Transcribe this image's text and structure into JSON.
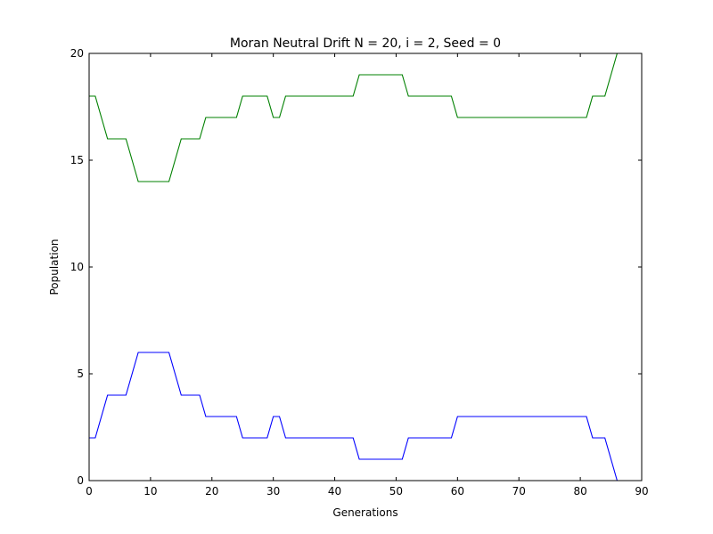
{
  "chart_data": {
    "type": "line",
    "title": "Moran Neutral Drift N = 20, i = 2, Seed = 0",
    "xlabel": "Generations",
    "ylabel": "Population",
    "xlim": [
      0,
      90
    ],
    "ylim": [
      0,
      20
    ],
    "xticks": [
      0,
      10,
      20,
      30,
      40,
      50,
      60,
      70,
      80,
      90
    ],
    "yticks": [
      0,
      5,
      10,
      15,
      20
    ],
    "grid": false,
    "legend": "none",
    "series": [
      {
        "color": "#0000ff",
        "x": [
          0,
          1,
          2,
          3,
          4,
          5,
          6,
          7,
          8,
          9,
          10,
          11,
          12,
          13,
          14,
          15,
          16,
          17,
          18,
          19,
          20,
          21,
          22,
          23,
          24,
          25,
          26,
          27,
          28,
          29,
          30,
          31,
          32,
          33,
          34,
          35,
          36,
          37,
          38,
          39,
          40,
          41,
          42,
          43,
          44,
          45,
          46,
          47,
          48,
          49,
          50,
          51,
          52,
          53,
          54,
          55,
          56,
          57,
          58,
          59,
          60,
          61,
          62,
          63,
          64,
          65,
          66,
          67,
          68,
          69,
          70,
          71,
          72,
          73,
          74,
          75,
          76,
          77,
          78,
          79,
          80,
          81,
          82,
          83,
          84,
          85,
          86
        ],
        "y": [
          2,
          2,
          3,
          4,
          4,
          4,
          4,
          5,
          6,
          6,
          6,
          6,
          6,
          6,
          5,
          4,
          4,
          4,
          4,
          3,
          3,
          3,
          3,
          3,
          3,
          2,
          2,
          2,
          2,
          2,
          3,
          3,
          2,
          2,
          2,
          2,
          2,
          2,
          2,
          2,
          2,
          2,
          2,
          2,
          1,
          1,
          1,
          1,
          1,
          1,
          1,
          1,
          2,
          2,
          2,
          2,
          2,
          2,
          2,
          2,
          3,
          3,
          3,
          3,
          3,
          3,
          3,
          3,
          3,
          3,
          3,
          3,
          3,
          3,
          3,
          3,
          3,
          3,
          3,
          3,
          3,
          3,
          2,
          2,
          2,
          1,
          0
        ]
      },
      {
        "color": "#008000",
        "x": [
          0,
          1,
          2,
          3,
          4,
          5,
          6,
          7,
          8,
          9,
          10,
          11,
          12,
          13,
          14,
          15,
          16,
          17,
          18,
          19,
          20,
          21,
          22,
          23,
          24,
          25,
          26,
          27,
          28,
          29,
          30,
          31,
          32,
          33,
          34,
          35,
          36,
          37,
          38,
          39,
          40,
          41,
          42,
          43,
          44,
          45,
          46,
          47,
          48,
          49,
          50,
          51,
          52,
          53,
          54,
          55,
          56,
          57,
          58,
          59,
          60,
          61,
          62,
          63,
          64,
          65,
          66,
          67,
          68,
          69,
          70,
          71,
          72,
          73,
          74,
          75,
          76,
          77,
          78,
          79,
          80,
          81,
          82,
          83,
          84,
          85,
          86
        ],
        "y": [
          18,
          18,
          17,
          16,
          16,
          16,
          16,
          15,
          14,
          14,
          14,
          14,
          14,
          14,
          15,
          16,
          16,
          16,
          16,
          17,
          17,
          17,
          17,
          17,
          17,
          18,
          18,
          18,
          18,
          18,
          17,
          17,
          18,
          18,
          18,
          18,
          18,
          18,
          18,
          18,
          18,
          18,
          18,
          18,
          19,
          19,
          19,
          19,
          19,
          19,
          19,
          19,
          18,
          18,
          18,
          18,
          18,
          18,
          18,
          18,
          17,
          17,
          17,
          17,
          17,
          17,
          17,
          17,
          17,
          17,
          17,
          17,
          17,
          17,
          17,
          17,
          17,
          17,
          17,
          17,
          17,
          17,
          18,
          18,
          18,
          19,
          20
        ]
      }
    ]
  }
}
